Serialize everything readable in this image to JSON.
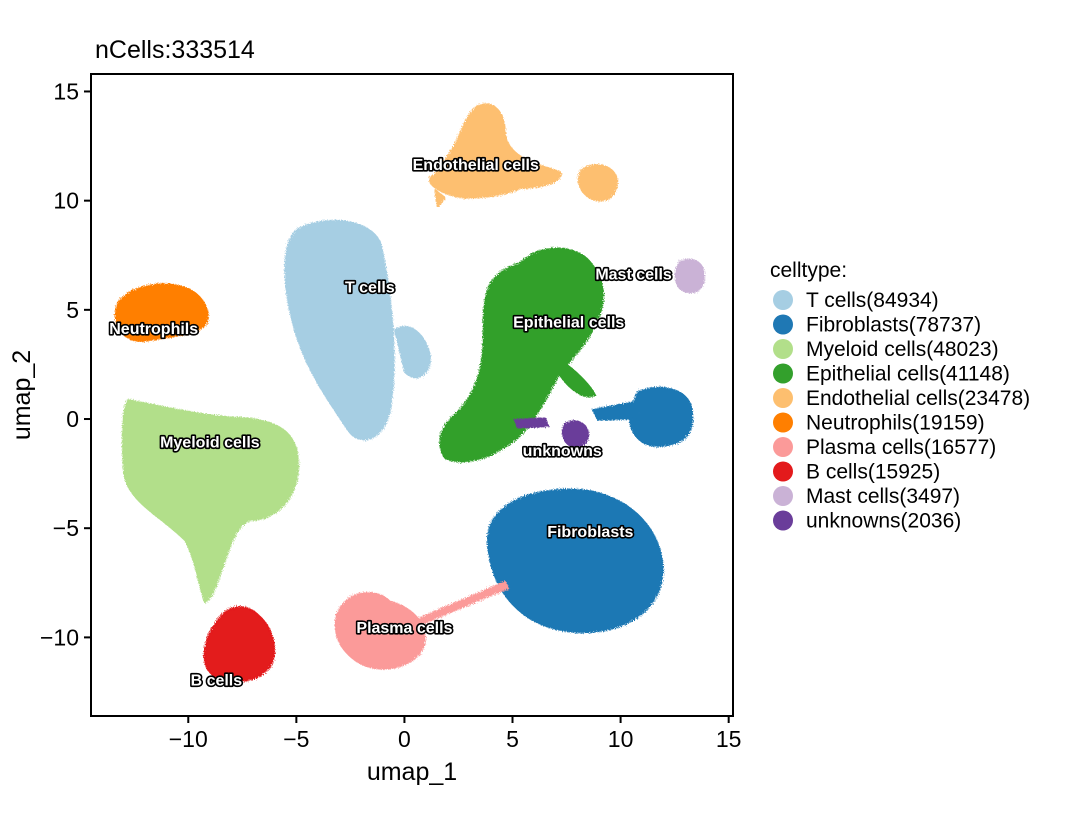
{
  "chart_data": {
    "type": "scatter",
    "title": "nCells:333514",
    "xlabel": "umap_1",
    "ylabel": "umap_2",
    "xlim": [
      -14.5,
      15.2
    ],
    "ylim": [
      -13.6,
      15.8
    ],
    "xticks": [
      -10,
      -5,
      0,
      5,
      10,
      15
    ],
    "yticks": [
      -10,
      -5,
      0,
      5,
      10,
      15
    ],
    "xtick_labels": [
      "−10",
      "−5",
      "0",
      "5",
      "10",
      "15"
    ],
    "ytick_labels": [
      "−10",
      "−5",
      "0",
      "5",
      "10",
      "15"
    ],
    "legend_title": "celltype:",
    "legend_position": "right",
    "series": [
      {
        "name": "T cells(84934)",
        "label": "T cells",
        "count": 84934,
        "color": "#A6CEE3",
        "label_x": -1.6,
        "label_y": 5.8
      },
      {
        "name": "Fibroblasts(78737)",
        "label": "Fibroblasts",
        "count": 78737,
        "color": "#1F78B4",
        "label_x": 8.6,
        "label_y": -5.4
      },
      {
        "name": "Myeloid cells(48023)",
        "label": "Myeloid cells",
        "count": 48023,
        "color": "#B2DF8A",
        "label_x": -9.0,
        "label_y": -1.3
      },
      {
        "name": "Epithelial cells(41148)",
        "label": "Epithelial cells",
        "count": 41148,
        "color": "#33A02C",
        "label_x": 7.6,
        "label_y": 4.2
      },
      {
        "name": "Endothelial cells(23478)",
        "label": "Endothelial cells",
        "count": 23478,
        "color": "#FDBF6F",
        "label_x": 3.3,
        "label_y": 11.4
      },
      {
        "name": "Neutrophils(19159)",
        "label": "Neutrophils",
        "count": 19159,
        "color": "#FF7F00",
        "label_x": -11.6,
        "label_y": 3.9
      },
      {
        "name": "Plasma cells(16577)",
        "label": "Plasma cells",
        "count": 16577,
        "color": "#FB9A99",
        "label_x": 0.0,
        "label_y": -9.8
      },
      {
        "name": "B cells(15925)",
        "label": "B cells",
        "count": 15925,
        "color": "#E31A1C",
        "label_x": -8.7,
        "label_y": -12.2
      },
      {
        "name": "Mast cells(3497)",
        "label": "Mast cells",
        "count": 3497,
        "color": "#CAB2D6",
        "label_x": 10.6,
        "label_y": 6.4
      },
      {
        "name": "unknowns(2036)",
        "label": "unknowns",
        "count": 2036,
        "color": "#6A3D9A",
        "label_x": 7.3,
        "label_y": -1.7
      }
    ]
  }
}
